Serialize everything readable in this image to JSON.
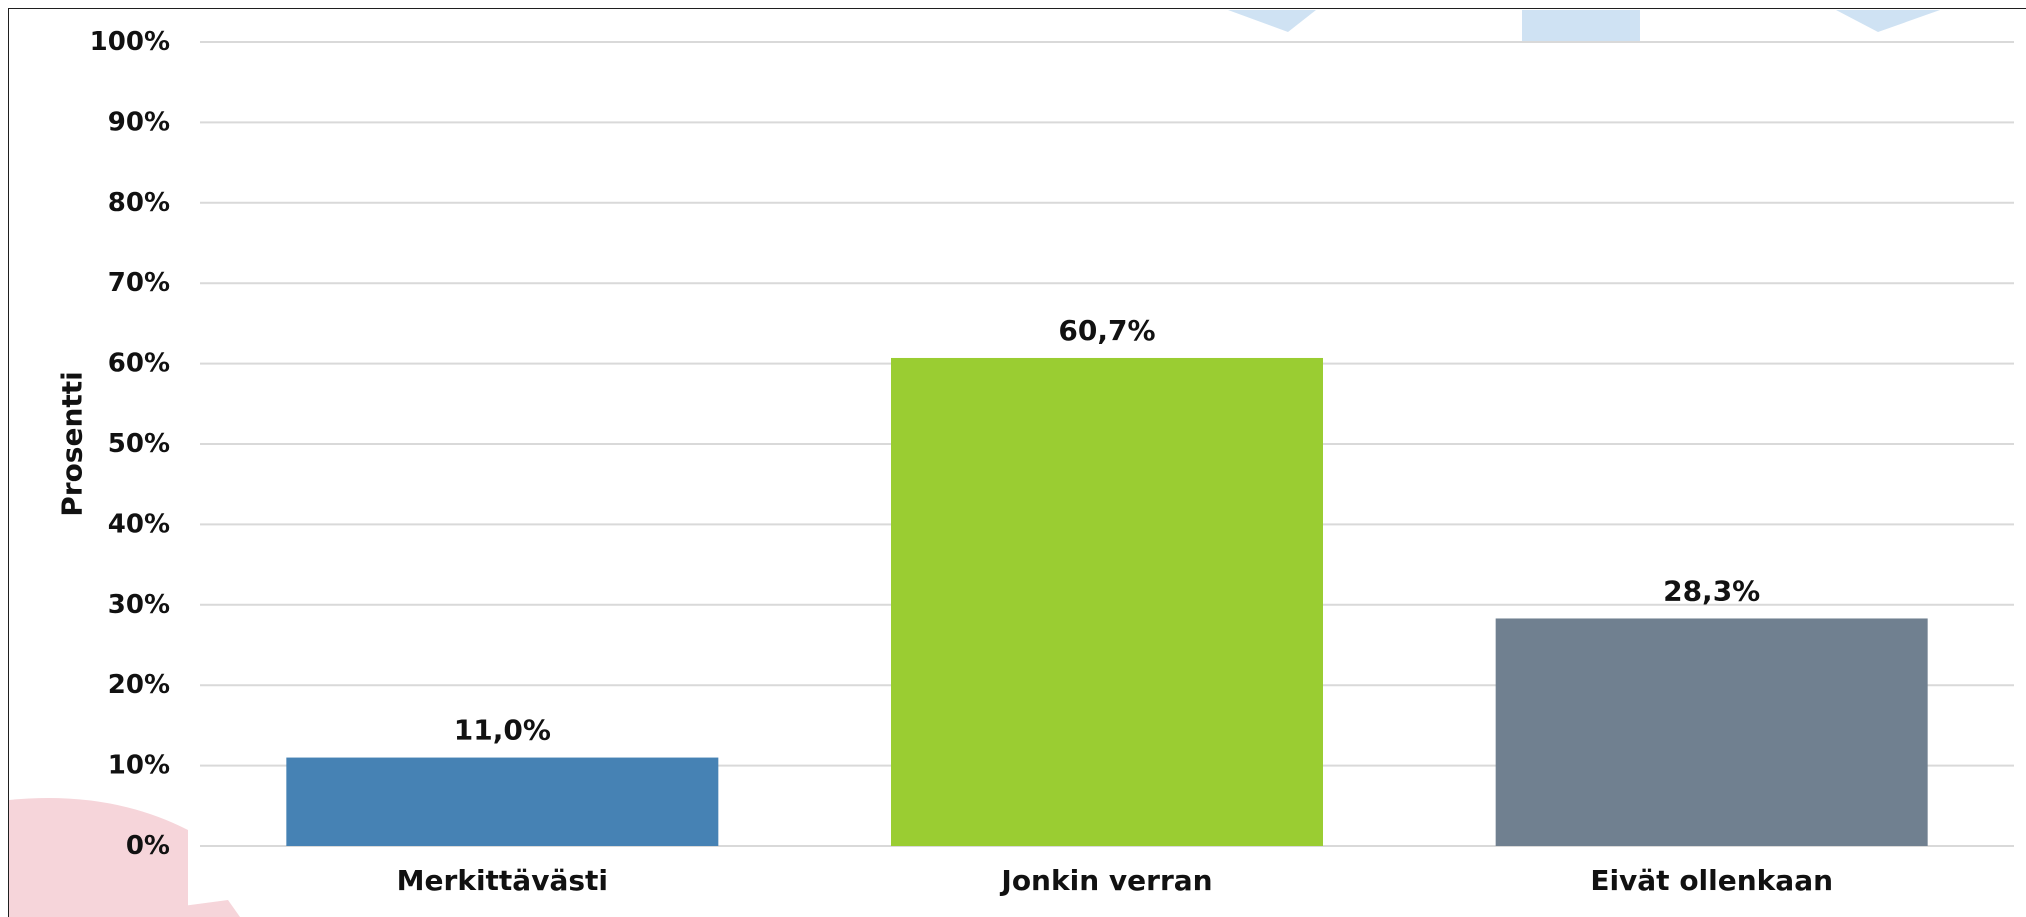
{
  "chart_data": {
    "type": "bar",
    "title": "",
    "xlabel": "",
    "ylabel": "Prosentti",
    "categories": [
      "Merkittävästi",
      "Jonkin verran",
      "Eivät ollenkaan"
    ],
    "values": [
      11.0,
      60.7,
      28.3
    ],
    "value_labels": [
      "11,0%",
      "60,7%",
      "28,3%"
    ],
    "bar_colors": [
      "#4682B4",
      "#9ACD32",
      "#708090"
    ],
    "ylim": [
      0,
      100
    ],
    "yticks": [
      0,
      10,
      20,
      30,
      40,
      50,
      60,
      70,
      80,
      90,
      100
    ],
    "ytick_labels": [
      "0%",
      "10%",
      "20%",
      "30%",
      "40%",
      "50%",
      "60%",
      "70%",
      "80%",
      "90%",
      "100%"
    ],
    "grid": true,
    "legend": "none"
  },
  "colors": {
    "gridline": "#D9D9D9",
    "background_shape_blue": "#CFE2F3",
    "background_shape_pink": "#F6D5DA"
  }
}
